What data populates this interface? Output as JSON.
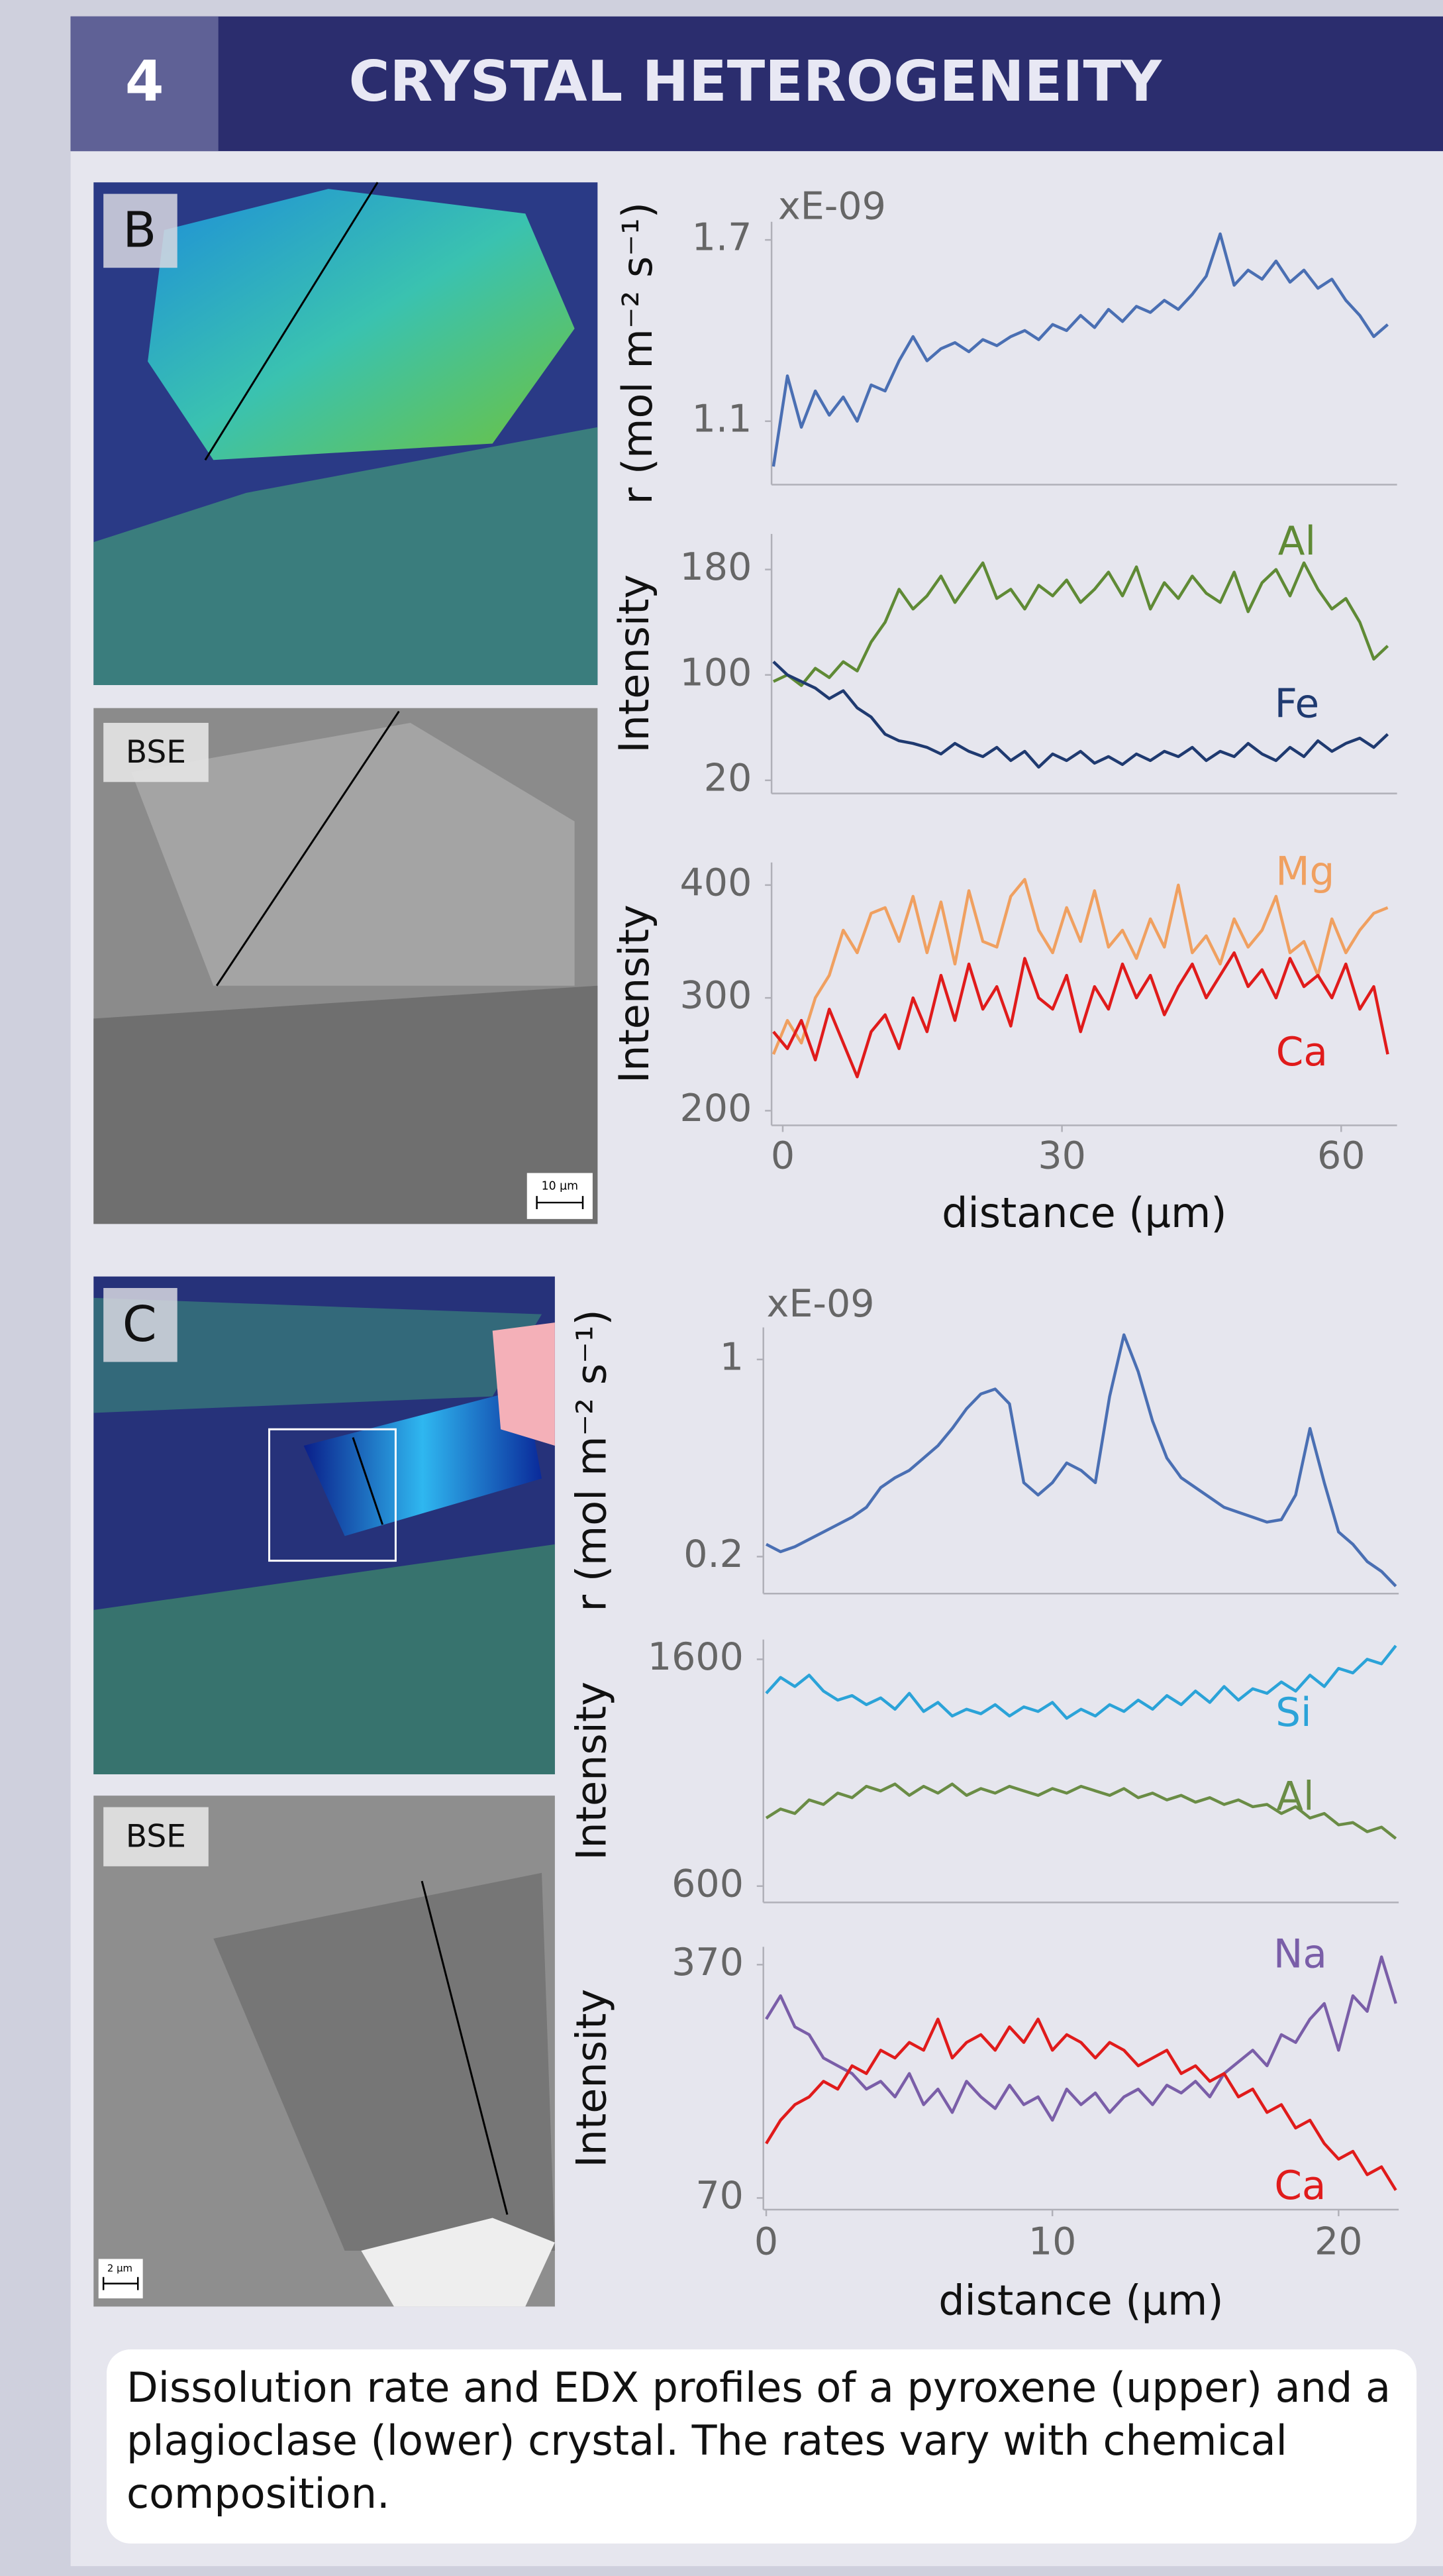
{
  "header": {
    "number": "4",
    "title": "CRYSTAL HETEROGENEITY"
  },
  "images": [
    {
      "label": "B"
    },
    {
      "label": "BSE",
      "scale": "10 µm"
    },
    {
      "label": "C"
    },
    {
      "label": "BSE",
      "scale": "2 µm"
    }
  ],
  "chart_data": [
    {
      "type": "line",
      "ylabel": "r (mol m⁻² s⁻¹)",
      "annotation": "xE-09",
      "x": [
        -1,
        0.5,
        2,
        3.5,
        5,
        6.5,
        8,
        9.5,
        11,
        12.5,
        14,
        15.5,
        17,
        18.5,
        20,
        21.5,
        23,
        24.5,
        26,
        27.5,
        29,
        30.5,
        32,
        33.5,
        35,
        36.5,
        38,
        39.5,
        41,
        42.5,
        44,
        45.5,
        47,
        48.5,
        50,
        51.5,
        53,
        54.5,
        56,
        57.5,
        59,
        60.5,
        62,
        63.5,
        65
      ],
      "xlim": [
        -1.2,
        66
      ],
      "ylim": [
        0.89,
        1.76
      ],
      "yticks": [
        1.1,
        1.7
      ],
      "series": [
        {
          "color": "#4a6fb3",
          "values": [
            0.95,
            1.25,
            1.08,
            1.2,
            1.12,
            1.18,
            1.1,
            1.22,
            1.2,
            1.3,
            1.38,
            1.3,
            1.34,
            1.36,
            1.33,
            1.37,
            1.35,
            1.38,
            1.4,
            1.37,
            1.42,
            1.4,
            1.45,
            1.41,
            1.47,
            1.43,
            1.48,
            1.46,
            1.5,
            1.47,
            1.52,
            1.58,
            1.72,
            1.55,
            1.6,
            1.57,
            1.63,
            1.56,
            1.6,
            1.54,
            1.57,
            1.5,
            1.45,
            1.38,
            1.42
          ]
        }
      ]
    },
    {
      "type": "line",
      "ylabel": "Intensity",
      "x": [
        -1,
        0.5,
        2,
        3.5,
        5,
        6.5,
        8,
        9.5,
        11,
        12.5,
        14,
        15.5,
        17,
        18.5,
        20,
        21.5,
        23,
        24.5,
        26,
        27.5,
        29,
        30.5,
        32,
        33.5,
        35,
        36.5,
        38,
        39.5,
        41,
        42.5,
        44,
        45.5,
        47,
        48.5,
        50,
        51.5,
        53,
        54.5,
        56,
        57.5,
        59,
        60.5,
        62,
        63.5,
        65
      ],
      "xlim": [
        -1.2,
        66
      ],
      "ylim": [
        10,
        207
      ],
      "yticks": [
        20,
        100,
        180
      ],
      "series": [
        {
          "name": "Al",
          "color": "#5f8a35",
          "values": [
            95,
            100,
            92,
            105,
            98,
            110,
            103,
            125,
            140,
            165,
            150,
            160,
            175,
            155,
            170,
            185,
            158,
            165,
            150,
            168,
            160,
            172,
            155,
            165,
            178,
            160,
            182,
            150,
            170,
            158,
            175,
            162,
            155,
            178,
            148,
            170,
            180,
            160,
            185,
            165,
            150,
            158,
            140,
            112,
            122
          ]
        },
        {
          "name": "Fe",
          "color": "#1f3a70",
          "values": [
            110,
            100,
            95,
            90,
            82,
            88,
            75,
            68,
            55,
            50,
            48,
            45,
            40,
            48,
            42,
            38,
            45,
            35,
            42,
            30,
            40,
            35,
            42,
            33,
            38,
            32,
            40,
            35,
            42,
            38,
            45,
            35,
            42,
            38,
            48,
            40,
            35,
            45,
            38,
            50,
            42,
            48,
            52,
            45,
            55
          ]
        }
      ]
    },
    {
      "type": "line",
      "ylabel": "Intensity",
      "xlabel": "distance (µm)",
      "x": [
        -1,
        0.5,
        2,
        3.5,
        5,
        6.5,
        8,
        9.5,
        11,
        12.5,
        14,
        15.5,
        17,
        18.5,
        20,
        21.5,
        23,
        24.5,
        26,
        27.5,
        29,
        30.5,
        32,
        33.5,
        35,
        36.5,
        38,
        39.5,
        41,
        42.5,
        44,
        45.5,
        47,
        48.5,
        50,
        51.5,
        53,
        54.5,
        56,
        57.5,
        59,
        60.5,
        62,
        63.5,
        65
      ],
      "xlim": [
        -1.2,
        66
      ],
      "xticks": [
        0,
        30,
        60
      ],
      "ylim": [
        187,
        420
      ],
      "yticks": [
        200,
        300,
        400
      ],
      "series": [
        {
          "name": "Mg",
          "color": "#f0a060",
          "values": [
            250,
            280,
            260,
            300,
            320,
            360,
            340,
            375,
            380,
            350,
            390,
            340,
            385,
            330,
            395,
            350,
            345,
            390,
            405,
            360,
            340,
            380,
            350,
            395,
            345,
            360,
            335,
            370,
            345,
            400,
            340,
            355,
            330,
            370,
            345,
            360,
            390,
            340,
            350,
            320,
            370,
            340,
            360,
            375,
            380
          ]
        },
        {
          "name": "Ca",
          "color": "#e01b1b",
          "values": [
            270,
            255,
            280,
            245,
            290,
            260,
            230,
            270,
            285,
            255,
            300,
            270,
            320,
            280,
            330,
            290,
            310,
            275,
            335,
            300,
            290,
            320,
            270,
            310,
            290,
            330,
            300,
            320,
            285,
            310,
            330,
            300,
            320,
            340,
            310,
            325,
            300,
            335,
            310,
            320,
            300,
            330,
            290,
            310,
            250
          ]
        }
      ]
    },
    {
      "type": "line",
      "ylabel": "r (mol m⁻² s⁻¹)",
      "annotation": "xE-09",
      "x": [
        0,
        0.5,
        1,
        1.5,
        2,
        2.5,
        3,
        3.5,
        4,
        4.5,
        5,
        5.5,
        6,
        6.5,
        7,
        7.5,
        8,
        8.5,
        9,
        9.5,
        10,
        10.5,
        11,
        11.5,
        12,
        12.5,
        13,
        13.5,
        14,
        14.5,
        15,
        15.5,
        16,
        16.5,
        17,
        17.5,
        18,
        18.5,
        19,
        19.5,
        20,
        20.5,
        21,
        21.5,
        22
      ],
      "xlim": [
        -0.1,
        22.1
      ],
      "ylim": [
        0.05,
        1.13
      ],
      "yticks": [
        0.2,
        1
      ],
      "series": [
        {
          "color": "#4a6fb3",
          "values": [
            0.25,
            0.22,
            0.24,
            0.27,
            0.3,
            0.33,
            0.36,
            0.4,
            0.48,
            0.52,
            0.55,
            0.6,
            0.65,
            0.72,
            0.8,
            0.86,
            0.88,
            0.82,
            0.5,
            0.45,
            0.5,
            0.58,
            0.55,
            0.5,
            0.85,
            1.1,
            0.95,
            0.75,
            0.6,
            0.52,
            0.48,
            0.44,
            0.4,
            0.38,
            0.36,
            0.34,
            0.35,
            0.45,
            0.72,
            0.5,
            0.3,
            0.25,
            0.18,
            0.14,
            0.08
          ]
        }
      ]
    },
    {
      "type": "line",
      "ylabel": "Intensity",
      "x": [
        0,
        0.5,
        1,
        1.5,
        2,
        2.5,
        3,
        3.5,
        4,
        4.5,
        5,
        5.5,
        6,
        6.5,
        7,
        7.5,
        8,
        8.5,
        9,
        9.5,
        10,
        10.5,
        11,
        11.5,
        12,
        12.5,
        13,
        13.5,
        14,
        14.5,
        15,
        15.5,
        16,
        16.5,
        17,
        17.5,
        18,
        18.5,
        19,
        19.5,
        20,
        20.5,
        21,
        21.5,
        22
      ],
      "xlim": [
        -0.1,
        22.1
      ],
      "ylim": [
        528,
        1687
      ],
      "yticks": [
        600,
        1600
      ],
      "series": [
        {
          "name": "Si",
          "color": "#2ba3d8",
          "values": [
            1450,
            1520,
            1480,
            1530,
            1460,
            1420,
            1440,
            1400,
            1430,
            1380,
            1450,
            1370,
            1410,
            1350,
            1380,
            1360,
            1400,
            1350,
            1390,
            1370,
            1410,
            1340,
            1380,
            1350,
            1400,
            1370,
            1420,
            1380,
            1440,
            1400,
            1460,
            1410,
            1480,
            1420,
            1470,
            1450,
            1500,
            1460,
            1530,
            1480,
            1560,
            1540,
            1600,
            1580,
            1660
          ]
        },
        {
          "name": "Al",
          "color": "#6a8c45",
          "values": [
            900,
            940,
            920,
            980,
            960,
            1010,
            990,
            1040,
            1020,
            1050,
            1000,
            1040,
            1010,
            1050,
            1000,
            1030,
            1010,
            1040,
            1020,
            1000,
            1030,
            1010,
            1040,
            1020,
            1000,
            1030,
            990,
            1010,
            980,
            1000,
            970,
            990,
            960,
            980,
            950,
            960,
            920,
            950,
            900,
            920,
            870,
            880,
            840,
            860,
            810
          ]
        }
      ]
    },
    {
      "type": "line",
      "ylabel": "Intensity",
      "xlabel": "distance (µm)",
      "x": [
        0,
        0.5,
        1,
        1.5,
        2,
        2.5,
        3,
        3.5,
        4,
        4.5,
        5,
        5.5,
        6,
        6.5,
        7,
        7.5,
        8,
        8.5,
        9,
        9.5,
        10,
        10.5,
        11,
        11.5,
        12,
        12.5,
        13,
        13.5,
        14,
        14.5,
        15,
        15.5,
        16,
        16.5,
        17,
        17.5,
        18,
        18.5,
        19,
        19.5,
        20,
        20.5,
        21,
        21.5,
        22
      ],
      "xlim": [
        -0.1,
        22.1
      ],
      "xticks": [
        0,
        10,
        20
      ],
      "ylim": [
        55,
        393
      ],
      "yticks": [
        70,
        370
      ],
      "series": [
        {
          "name": "Na",
          "color": "#7a5ea8",
          "values": [
            300,
            330,
            290,
            280,
            250,
            240,
            230,
            210,
            220,
            200,
            230,
            190,
            210,
            180,
            220,
            200,
            185,
            215,
            190,
            200,
            170,
            210,
            190,
            205,
            180,
            200,
            210,
            190,
            215,
            205,
            220,
            200,
            230,
            245,
            260,
            240,
            280,
            270,
            300,
            320,
            260,
            330,
            310,
            380,
            320
          ]
        },
        {
          "name": "Ca",
          "color": "#e01b1b",
          "values": [
            140,
            170,
            190,
            200,
            220,
            210,
            240,
            230,
            260,
            250,
            270,
            260,
            300,
            250,
            270,
            280,
            260,
            290,
            270,
            300,
            260,
            280,
            270,
            250,
            270,
            260,
            240,
            250,
            260,
            230,
            240,
            220,
            230,
            200,
            210,
            180,
            190,
            160,
            170,
            140,
            120,
            130,
            100,
            110,
            80
          ]
        }
      ]
    }
  ],
  "caption": "Dissolution rate and EDX profiles of a pyroxene (upper) and a plagioclase (lower) crystal. The rates vary with chemical composition."
}
